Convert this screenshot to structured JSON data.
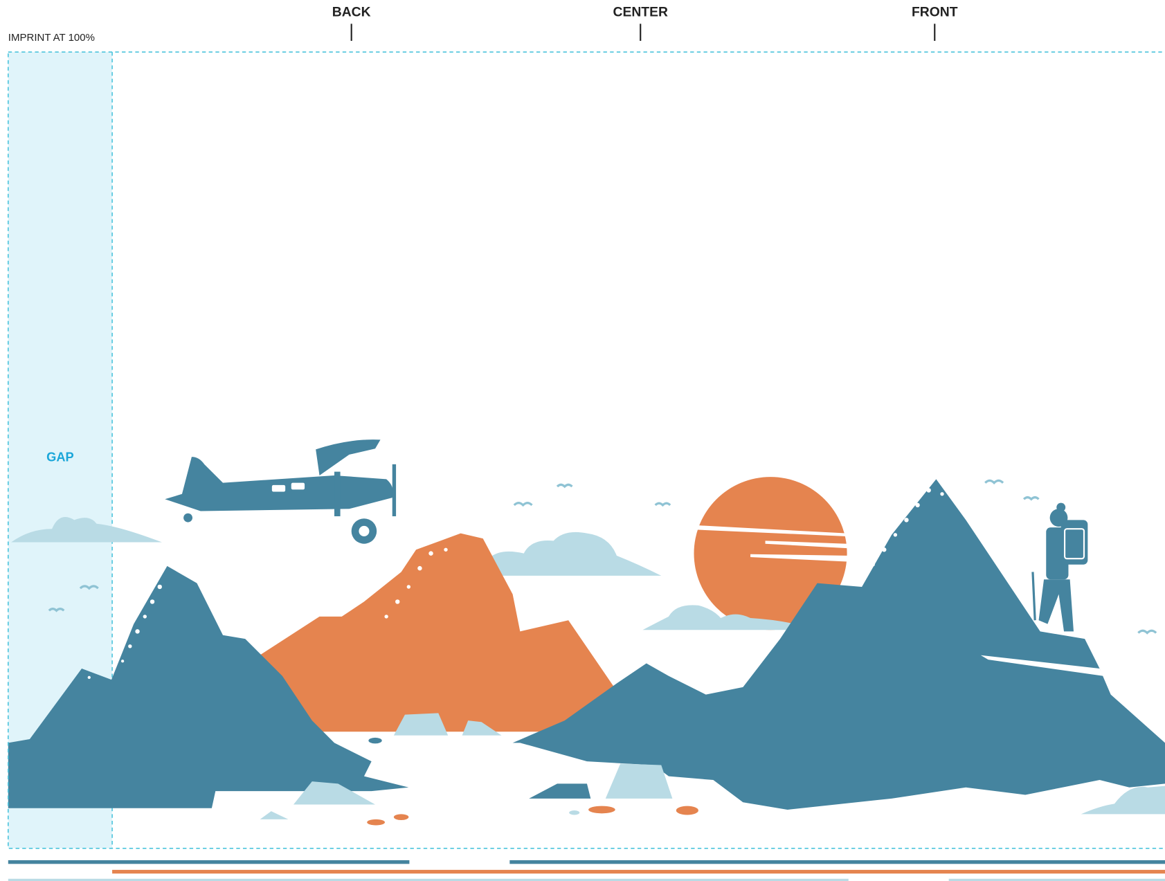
{
  "labels": {
    "back": "BACK",
    "center": "CENTER",
    "front": "FRONT"
  },
  "imprint": "IMPRINT AT 100%",
  "gap": "GAP"
}
